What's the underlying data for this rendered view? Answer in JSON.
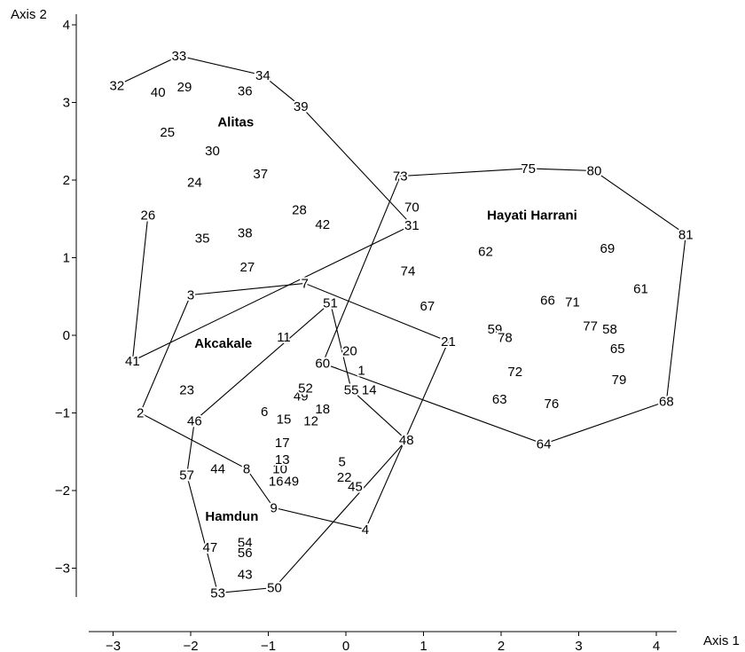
{
  "chart_data": {
    "type": "scatter",
    "title": "",
    "xlabel": "Axis 1",
    "ylabel": "Axis 2",
    "xlim": [
      -3.25,
      4.25
    ],
    "ylim": [
      -3.4,
      4.1
    ],
    "xticks": [
      -3,
      -2,
      -1,
      0,
      1,
      2,
      3,
      4
    ],
    "yticks": [
      -3,
      -2,
      -1,
      0,
      1,
      2,
      3,
      4
    ],
    "grid": false,
    "points": [
      {
        "label": "1",
        "x": 0.2,
        "y": -0.45
      },
      {
        "label": "2",
        "x": -2.65,
        "y": -1.0
      },
      {
        "label": "3",
        "x": -2.0,
        "y": 0.52
      },
      {
        "label": "4",
        "x": 0.25,
        "y": -2.5
      },
      {
        "label": "5",
        "x": -0.05,
        "y": -1.63
      },
      {
        "label": "6",
        "x": -1.05,
        "y": -0.98
      },
      {
        "label": "7",
        "x": -0.53,
        "y": 0.67
      },
      {
        "label": "8",
        "x": -1.28,
        "y": -1.72
      },
      {
        "label": "9",
        "x": -0.93,
        "y": -2.22
      },
      {
        "label": "10",
        "x": -0.85,
        "y": -1.72
      },
      {
        "label": "11",
        "x": -0.8,
        "y": -0.02
      },
      {
        "label": "12",
        "x": -0.45,
        "y": -1.1
      },
      {
        "label": "13",
        "x": -0.82,
        "y": -1.6
      },
      {
        "label": "14",
        "x": 0.3,
        "y": -0.7
      },
      {
        "label": "15",
        "x": -0.8,
        "y": -1.08
      },
      {
        "label": "16",
        "x": -0.9,
        "y": -1.88
      },
      {
        "label": "17",
        "x": -0.82,
        "y": -1.38
      },
      {
        "label": "18",
        "x": -0.3,
        "y": -0.95
      },
      {
        "label": "20",
        "x": 0.05,
        "y": -0.2
      },
      {
        "label": "21",
        "x": 1.32,
        "y": -0.08
      },
      {
        "label": "22",
        "x": -0.02,
        "y": -1.83
      },
      {
        "label": "23",
        "x": -2.05,
        "y": -0.7
      },
      {
        "label": "24",
        "x": -1.95,
        "y": 1.97
      },
      {
        "label": "25",
        "x": -2.3,
        "y": 2.62
      },
      {
        "label": "26",
        "x": -2.55,
        "y": 1.55
      },
      {
        "label": "27",
        "x": -1.27,
        "y": 0.88
      },
      {
        "label": "28",
        "x": -0.6,
        "y": 1.62
      },
      {
        "label": "29",
        "x": -2.08,
        "y": 3.2
      },
      {
        "label": "30",
        "x": -1.72,
        "y": 2.38
      },
      {
        "label": "31",
        "x": 0.85,
        "y": 1.42
      },
      {
        "label": "32",
        "x": -2.95,
        "y": 3.22
      },
      {
        "label": "33",
        "x": -2.15,
        "y": 3.6
      },
      {
        "label": "34",
        "x": -1.07,
        "y": 3.35
      },
      {
        "label": "35",
        "x": -1.85,
        "y": 1.25
      },
      {
        "label": "36",
        "x": -1.3,
        "y": 3.15
      },
      {
        "label": "37",
        "x": -1.1,
        "y": 2.08
      },
      {
        "label": "38",
        "x": -1.3,
        "y": 1.32
      },
      {
        "label": "39",
        "x": -0.58,
        "y": 2.95
      },
      {
        "label": "40",
        "x": -2.42,
        "y": 3.13
      },
      {
        "label": "41",
        "x": -2.75,
        "y": -0.33
      },
      {
        "label": "42",
        "x": -0.3,
        "y": 1.43
      },
      {
        "label": "43",
        "x": -1.3,
        "y": -3.08
      },
      {
        "label": "44",
        "x": -1.65,
        "y": -1.72
      },
      {
        "label": "45",
        "x": 0.12,
        "y": -1.95
      },
      {
        "label": "46",
        "x": -1.95,
        "y": -1.1
      },
      {
        "label": "47",
        "x": -1.75,
        "y": -2.73
      },
      {
        "label": "48",
        "x": 0.78,
        "y": -1.35
      },
      {
        "label": "49",
        "x": -0.58,
        "y": -0.78
      },
      {
        "label": "49",
        "x": -0.7,
        "y": -1.88
      },
      {
        "label": "50",
        "x": -0.92,
        "y": -3.25
      },
      {
        "label": "51",
        "x": -0.2,
        "y": 0.42
      },
      {
        "label": "52",
        "x": -0.52,
        "y": -0.68
      },
      {
        "label": "53",
        "x": -1.65,
        "y": -3.32
      },
      {
        "label": "54",
        "x": -1.3,
        "y": -2.67
      },
      {
        "label": "55",
        "x": 0.07,
        "y": -0.7
      },
      {
        "label": "56",
        "x": -1.3,
        "y": -2.8
      },
      {
        "label": "57",
        "x": -2.05,
        "y": -1.8
      },
      {
        "label": "58",
        "x": 3.4,
        "y": 0.08
      },
      {
        "label": "59",
        "x": 1.92,
        "y": 0.08
      },
      {
        "label": "60",
        "x": -0.3,
        "y": -0.36
      },
      {
        "label": "61",
        "x": 3.8,
        "y": 0.6
      },
      {
        "label": "62",
        "x": 1.8,
        "y": 1.08
      },
      {
        "label": "63",
        "x": 1.98,
        "y": -0.82
      },
      {
        "label": "64",
        "x": 2.55,
        "y": -1.4
      },
      {
        "label": "65",
        "x": 3.5,
        "y": -0.17
      },
      {
        "label": "66",
        "x": 2.6,
        "y": 0.45
      },
      {
        "label": "67",
        "x": 1.05,
        "y": 0.38
      },
      {
        "label": "68",
        "x": 4.13,
        "y": -0.85
      },
      {
        "label": "69",
        "x": 3.37,
        "y": 1.12
      },
      {
        "label": "70",
        "x": 0.85,
        "y": 1.65
      },
      {
        "label": "71",
        "x": 2.92,
        "y": 0.43
      },
      {
        "label": "72",
        "x": 2.18,
        "y": -0.47
      },
      {
        "label": "73",
        "x": 0.7,
        "y": 2.05
      },
      {
        "label": "74",
        "x": 0.8,
        "y": 0.83
      },
      {
        "label": "75",
        "x": 2.35,
        "y": 2.15
      },
      {
        "label": "76",
        "x": 2.65,
        "y": -0.88
      },
      {
        "label": "77",
        "x": 3.15,
        "y": 0.12
      },
      {
        "label": "78",
        "x": 2.05,
        "y": -0.03
      },
      {
        "label": "79",
        "x": 3.52,
        "y": -0.57
      },
      {
        "label": "80",
        "x": 3.2,
        "y": 2.12
      },
      {
        "label": "81",
        "x": 4.38,
        "y": 1.3
      }
    ],
    "groups": [
      {
        "name": "Alitas",
        "label_x": -1.42,
        "label_y": 2.75,
        "hull": [
          "32",
          "33",
          "34",
          "39",
          "31",
          "41",
          "26"
        ]
      },
      {
        "name": "Hayati Harrani",
        "label_x": 2.4,
        "label_y": 1.55,
        "hull": [
          "73",
          "75",
          "80",
          "81",
          "68",
          "64",
          "60",
          "73"
        ]
      },
      {
        "name": "Akcakale",
        "label_x": -1.58,
        "label_y": -0.1,
        "hull": [
          "3",
          "7",
          "21",
          "4",
          "9",
          "8",
          "2",
          "3"
        ]
      },
      {
        "name": "Hamdun",
        "label_x": -1.47,
        "label_y": -2.33,
        "hull": [
          "51",
          "46",
          "57",
          "53",
          "50",
          "48",
          "55",
          "51"
        ]
      }
    ]
  }
}
